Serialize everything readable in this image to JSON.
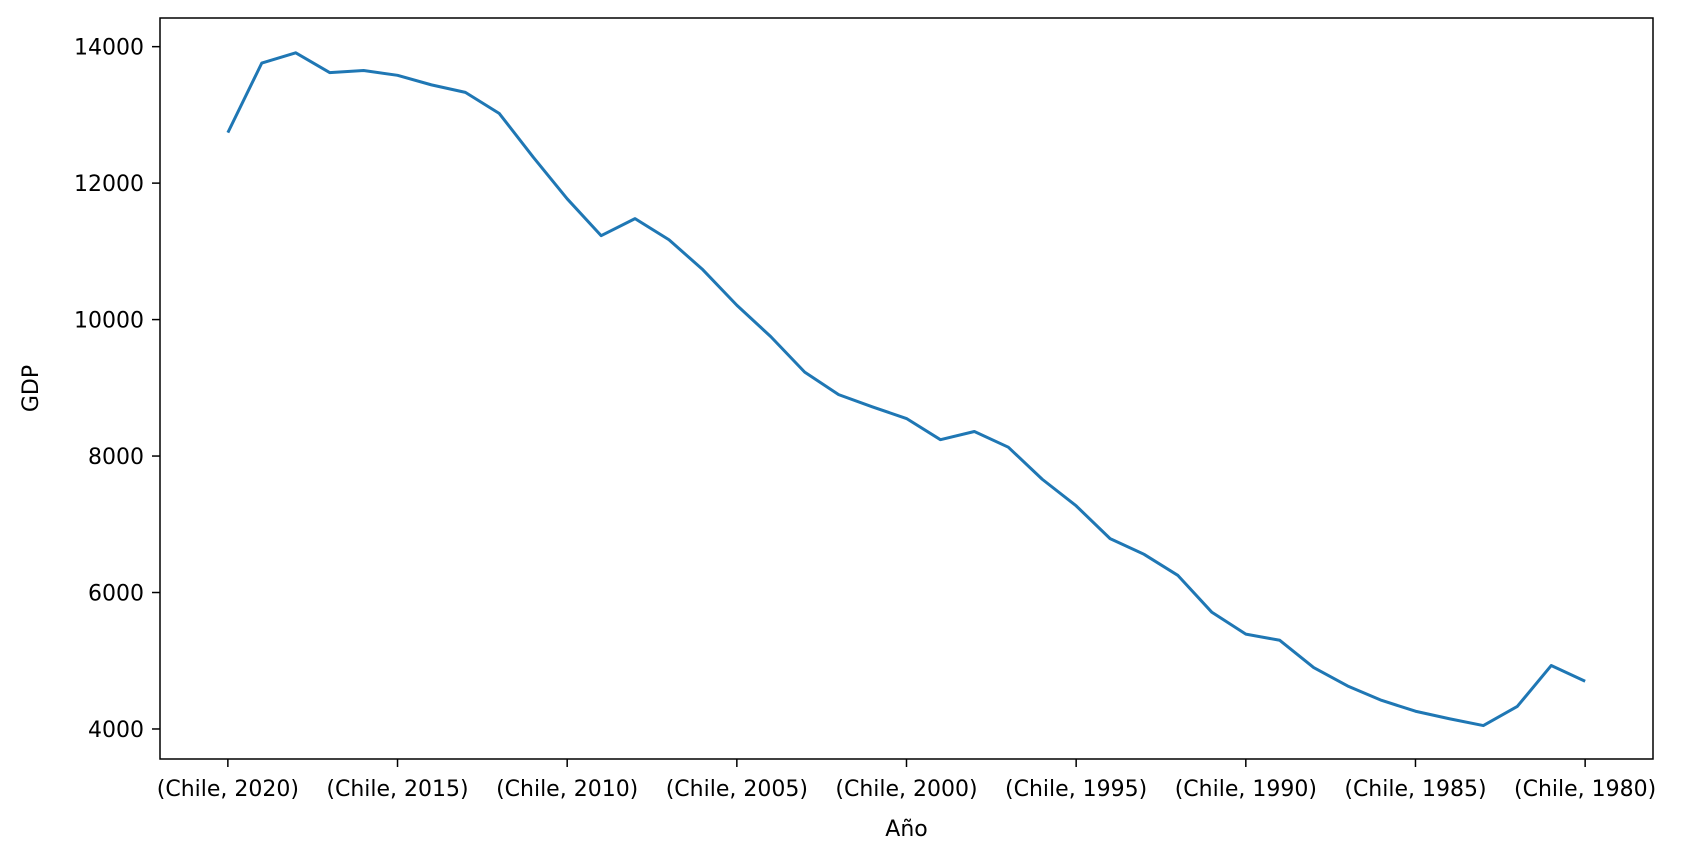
{
  "chart_data": {
    "type": "line",
    "title": "",
    "xlabel": "Año",
    "ylabel": "GDP",
    "x": [
      2020,
      2019,
      2018,
      2017,
      2016,
      2015,
      2014,
      2013,
      2012,
      2011,
      2010,
      2009,
      2008,
      2007,
      2006,
      2005,
      2004,
      2003,
      2002,
      2001,
      2000,
      1999,
      1998,
      1997,
      1996,
      1995,
      1994,
      1993,
      1992,
      1991,
      1990,
      1989,
      1988,
      1987,
      1986,
      1985,
      1984,
      1983,
      1982,
      1981,
      1980
    ],
    "series": [
      {
        "color": "#1f77b4",
        "values": [
          12740,
          13760,
          13910,
          13620,
          13650,
          13580,
          13440,
          13330,
          13020,
          12380,
          11770,
          11230,
          11480,
          11170,
          10730,
          10210,
          9750,
          9230,
          8900,
          8720,
          8550,
          8240,
          8360,
          8130,
          7660,
          7270,
          6790,
          6560,
          6250,
          5710,
          5390,
          5300,
          4900,
          4630,
          4420,
          4260,
          4150,
          4050,
          4330,
          4930,
          4700
        ]
      }
    ],
    "xticks": [
      {
        "x": 2020,
        "label": "(Chile, 2020)"
      },
      {
        "x": 2015,
        "label": "(Chile, 2015)"
      },
      {
        "x": 2010,
        "label": "(Chile, 2010)"
      },
      {
        "x": 2005,
        "label": "(Chile, 2005)"
      },
      {
        "x": 2000,
        "label": "(Chile, 2000)"
      },
      {
        "x": 1995,
        "label": "(Chile, 1995)"
      },
      {
        "x": 1990,
        "label": "(Chile, 1990)"
      },
      {
        "x": 1985,
        "label": "(Chile, 1985)"
      },
      {
        "x": 1980,
        "label": "(Chile, 1980)"
      }
    ],
    "yticks": [
      4000,
      6000,
      8000,
      10000,
      12000,
      14000
    ],
    "xlim": [
      2022,
      1978
    ],
    "ylim": [
      3560,
      14420
    ],
    "x_reversed": true,
    "grid": false,
    "legend": "none"
  }
}
